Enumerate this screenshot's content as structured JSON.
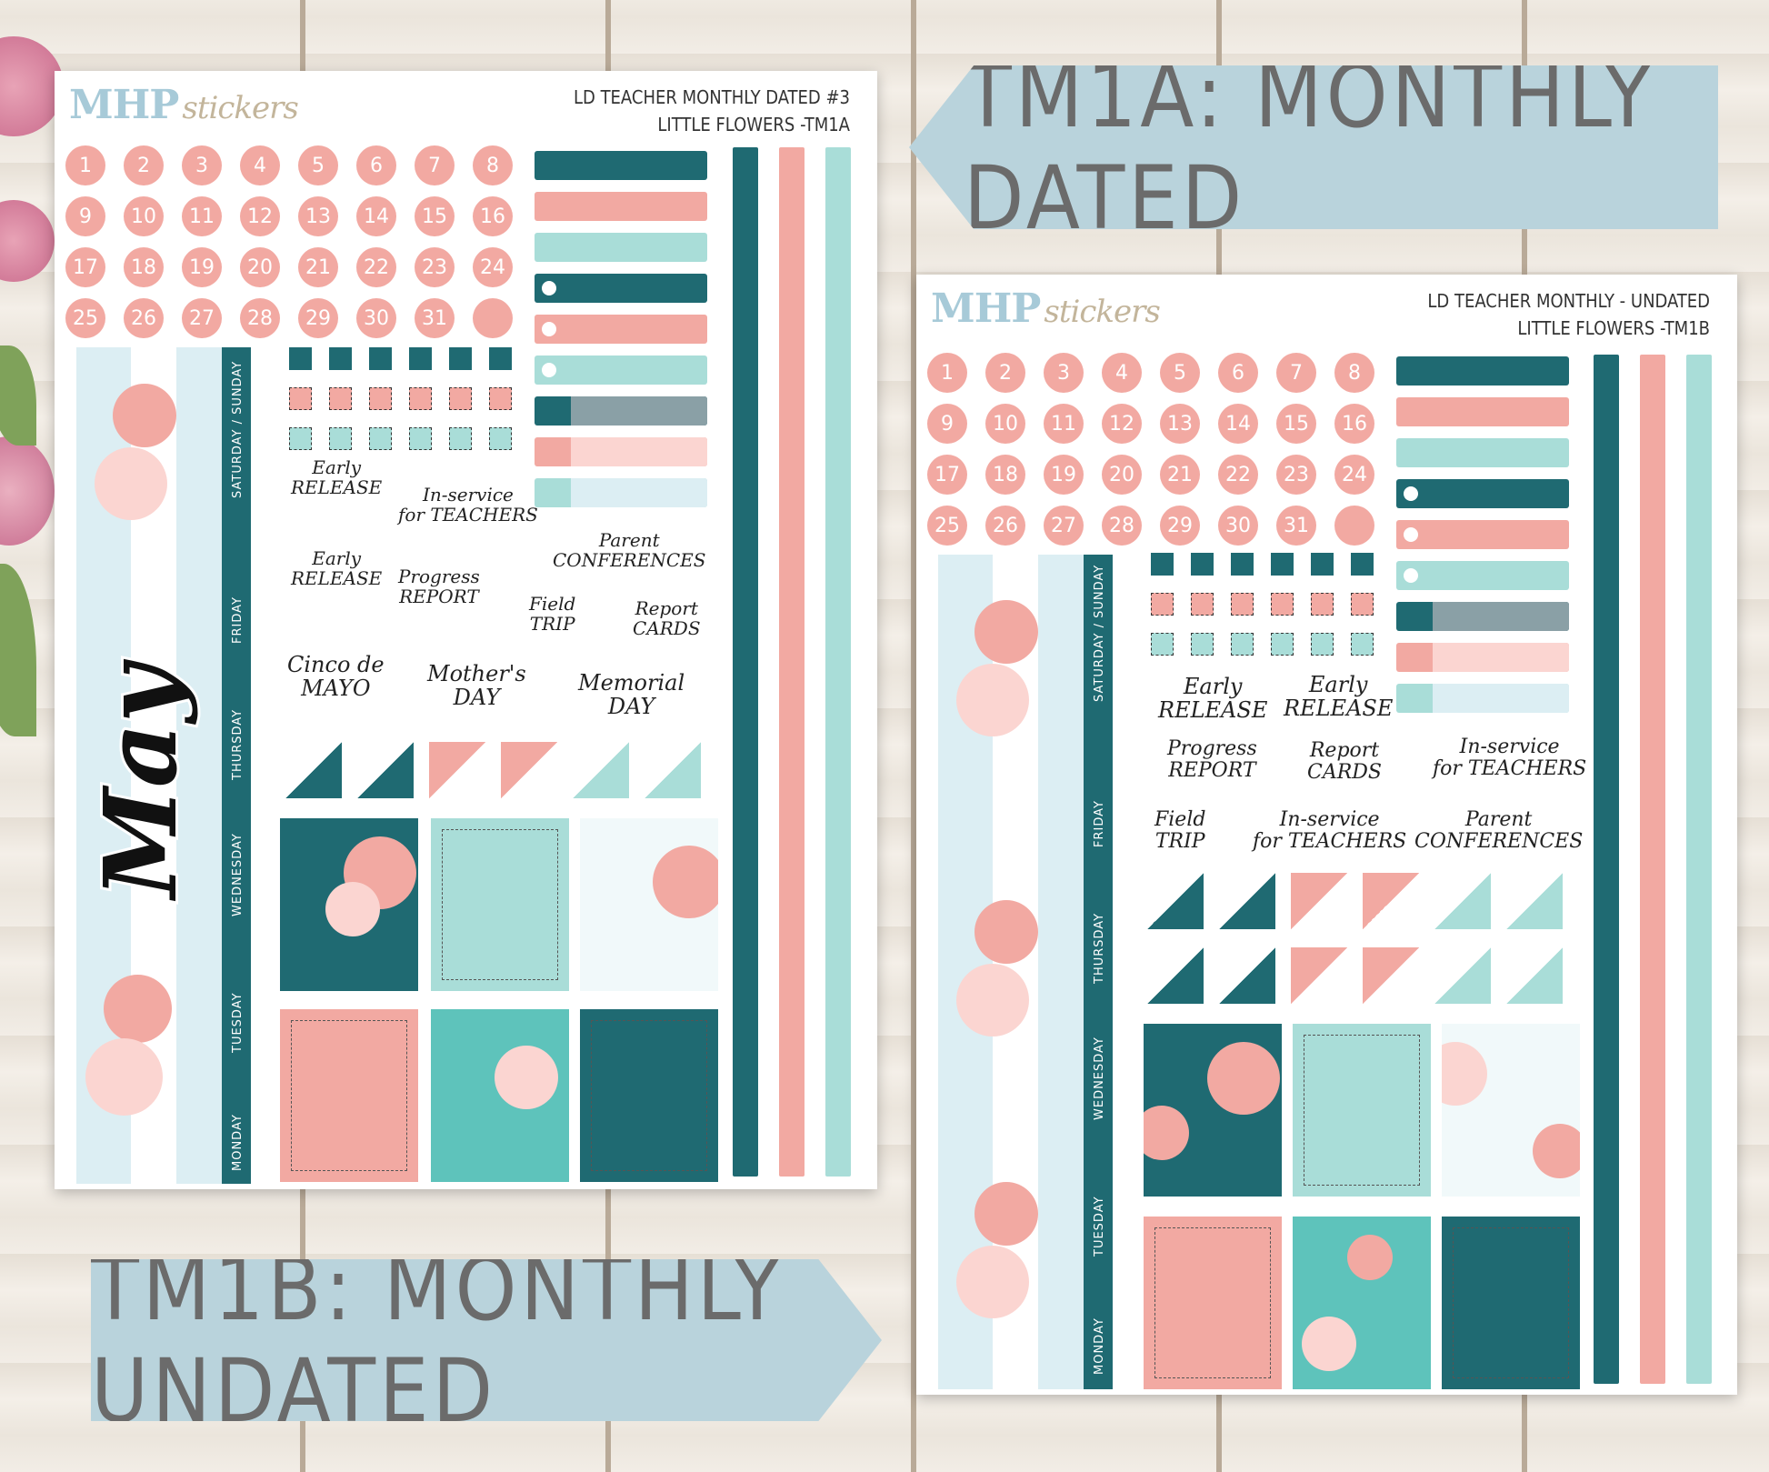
{
  "banners": {
    "a": "TM1A: MONTHLY DATED",
    "b": "TM1B: MONTHLY UNDATED"
  },
  "sheet_a": {
    "logo_main": "MHP",
    "logo_script": "stickers",
    "title_line1": "LD TEACHER MONTHLY   DATED #3",
    "title_line2": "LITTLE FLOWERS -TM1A",
    "month": "May",
    "days": [
      "SATURDAY / SUNDAY",
      "FRIDAY",
      "THURSDAY",
      "WEDNESDAY",
      "TUESDAY",
      "MONDAY"
    ],
    "phrases": [
      {
        "l1": "Early",
        "l2": "RELEASE"
      },
      {
        "l1": "In-service",
        "l2": "for TEACHERS"
      },
      {
        "l1": "Parent",
        "l2": "CONFERENCES"
      },
      {
        "l1": "Early",
        "l2": "RELEASE"
      },
      {
        "l1": "Progress",
        "l2": "REPORT"
      },
      {
        "l1": "Field",
        "l2": "TRIP"
      },
      {
        "l1": "Report",
        "l2": "CARDS"
      },
      {
        "l1": "Cinco de",
        "l2": "MAYO"
      },
      {
        "l1": "Mother's",
        "l2": "DAY"
      },
      {
        "l1": "Memorial",
        "l2": "DAY"
      }
    ]
  },
  "sheet_b": {
    "logo_main": "MHP",
    "logo_script": "stickers",
    "title_line1": "LD TEACHER MONTHLY  - UNDATED",
    "title_line2": "LITTLE FLOWERS -TM1B",
    "days": [
      "SATURDAY / SUNDAY",
      "FRIDAY",
      "THURSDAY",
      "WEDNESDAY",
      "TUESDAY",
      "MONDAY"
    ],
    "phrases": [
      {
        "l1": "Early",
        "l2": "RELEASE"
      },
      {
        "l1": "Early",
        "l2": "RELEASE"
      },
      {
        "l1": "Progress",
        "l2": "REPORT"
      },
      {
        "l1": "Report",
        "l2": "CARDS"
      },
      {
        "l1": "In-service",
        "l2": "for TEACHERS"
      },
      {
        "l1": "Field",
        "l2": "TRIP"
      },
      {
        "l1": "In-service",
        "l2": "for TEACHERS"
      },
      {
        "l1": "Parent",
        "l2": "CONFERENCES"
      }
    ]
  },
  "dates": [
    "1",
    "2",
    "3",
    "4",
    "5",
    "6",
    "7",
    "8",
    "9",
    "10",
    "11",
    "12",
    "13",
    "14",
    "15",
    "16",
    "17",
    "18",
    "19",
    "20",
    "21",
    "22",
    "23",
    "24",
    "25",
    "26",
    "27",
    "28",
    "29",
    "30",
    "31",
    ""
  ],
  "colors": {
    "teal": "#1f6a72",
    "coral": "#f2a9a2",
    "mint": "#a9ddd8",
    "pale_blue": "#dceef3",
    "slate": "#8aa0a6",
    "pink_light": "#fbd5d1",
    "banner": "#b9d3dc"
  }
}
